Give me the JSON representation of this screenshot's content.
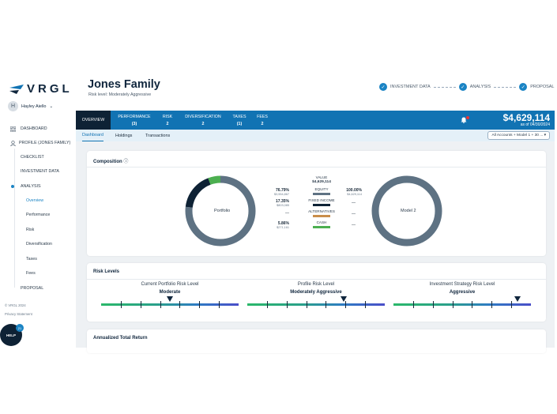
{
  "brand": {
    "name": "VRGL"
  },
  "user": {
    "initial": "H",
    "name": "Hayley Aiello"
  },
  "sidebar": {
    "items": [
      {
        "label": "DASHBOARD"
      },
      {
        "label": "PROFILE (JONES FAMILY)"
      },
      {
        "label": "CHECKLIST"
      },
      {
        "label": "INVESTMENT DATA"
      },
      {
        "label": "ANALYSIS"
      },
      {
        "label": "Overview"
      },
      {
        "label": "Performance"
      },
      {
        "label": "Risk"
      },
      {
        "label": "Diversification"
      },
      {
        "label": "Taxes"
      },
      {
        "label": "Fees"
      },
      {
        "label": "PROPOSAL"
      }
    ],
    "copyright": "© VRGL 2024",
    "privacy": "Privacy Statement",
    "help": "HELP",
    "help_badge": "21"
  },
  "header": {
    "title": "Jones Family",
    "subtitle": "Risk level: Moderately Aggressive",
    "steps": [
      "INVESTMENT DATA",
      "ANALYSIS",
      "PROPOSAL"
    ]
  },
  "tabs": [
    {
      "label": "OVERVIEW",
      "count": ""
    },
    {
      "label": "PERFORMANCE",
      "count": "(3)"
    },
    {
      "label": "RISK",
      "count": "2"
    },
    {
      "label": "DIVERSIFICATION",
      "count": "2"
    },
    {
      "label": "TAXES",
      "count": "(1)"
    },
    {
      "label": "FEES",
      "count": "2"
    }
  ],
  "total": {
    "amount": "$4,629,114",
    "as_of": "as of 04/30/2024"
  },
  "subtabs": [
    "Dashboard",
    "Holdings",
    "Transactions"
  ],
  "account_select": "All Accounts + Model 1 + 30 ... ▾",
  "composition": {
    "title": "Composition",
    "left_label": "Portfolio",
    "right_label": "Model 2",
    "value_header": "VALUE",
    "value_total": "$4,629,114",
    "rows": [
      {
        "name": "EQUITY",
        "color": "#5e7283",
        "left_pct": "76.79%",
        "left_val": "$3,554,867",
        "right_pct": "100.00%",
        "right_val": "$4,629,114"
      },
      {
        "name": "FIXED INCOME",
        "color": "#0e2235",
        "left_pct": "17.35%",
        "left_val": "$803,085",
        "right_pct": "—",
        "right_val": ""
      },
      {
        "name": "ALTERNATIVES",
        "color": "#c98d4a",
        "left_pct": "—",
        "left_val": "",
        "right_pct": "—",
        "right_val": ""
      },
      {
        "name": "CASH",
        "color": "#4caf50",
        "left_pct": "5.86%",
        "left_val": "$271,161",
        "right_pct": "—",
        "right_val": ""
      }
    ],
    "portfolio_shares": [
      76.79,
      17.35,
      5.86
    ],
    "portfolio_colors": [
      "#5e7283",
      "#0e2235",
      "#4caf50"
    ]
  },
  "risk_levels": {
    "title": "Risk Levels",
    "columns": [
      {
        "title": "Current Portfolio Risk Level",
        "value": "Moderate",
        "position": 0.5
      },
      {
        "title": "Profile Risk Level",
        "value": "Moderately Aggressive",
        "position": 0.7
      },
      {
        "title": "Investment Strategy Risk Level",
        "value": "Aggressive",
        "position": 0.9
      }
    ]
  },
  "annualized": {
    "title": "Annualized Total Return"
  }
}
